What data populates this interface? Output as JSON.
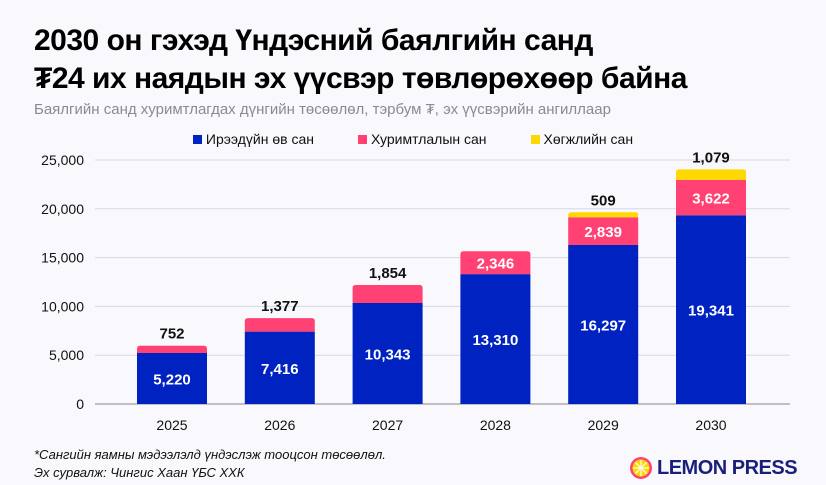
{
  "header": {
    "title_line1": "2030 он гэхэд Үндэсний баялгийн санд",
    "title_line2": "₮24 их наядын эх үүсвэр төвлөрөхөөр байна",
    "subtitle": "Баялгийн санд хуримтлагдах дүнгийн төсөөлөл, тэрбум ₮, эх үүсвэрийн ангиллаар"
  },
  "chart_data": {
    "type": "bar",
    "stacked": true,
    "categories": [
      "2025",
      "2026",
      "2027",
      "2028",
      "2029",
      "2030"
    ],
    "series": [
      {
        "name": "Ирээдүйн өв сан",
        "color": "#0022c0",
        "values": [
          5220,
          7416,
          10343,
          13310,
          16297,
          19341
        ],
        "labels": [
          "5,220",
          "7,416",
          "10,343",
          "13,310",
          "16,297",
          "19,341"
        ]
      },
      {
        "name": "Хуримтлалын сан",
        "color": "#ff4273",
        "values": [
          752,
          1377,
          1854,
          2346,
          2839,
          3622
        ],
        "labels": [
          "752",
          "1,377",
          "1,854",
          "2,346",
          "2,839",
          "3,622"
        ]
      },
      {
        "name": "Хөгжлийн сан",
        "color": "#ffd800",
        "values": [
          0,
          0,
          0,
          0,
          509,
          1079
        ],
        "labels": [
          "",
          "",
          "",
          "",
          "509",
          "1,079"
        ]
      }
    ],
    "ylim": [
      0,
      25000
    ],
    "yticks": [
      "0",
      "5,000",
      "10,000",
      "15,000",
      "20,000",
      "25,000"
    ],
    "grid": true,
    "legend": "top-center"
  },
  "footer": {
    "note": "*Сангийн яамны мэдээлэлд үндэслэж тооцсон төсөөлөл.",
    "source": "Эх сурвалж: Чингис Хаан ҮБС ХХК",
    "logo": "LEMON PRESS"
  }
}
